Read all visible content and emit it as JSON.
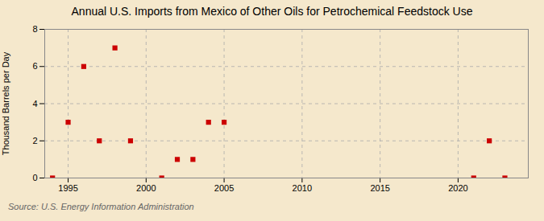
{
  "chart_data": {
    "type": "scatter",
    "title": "Annual U.S. Imports from Mexico of Other Oils for Petrochemical Feedstock Use",
    "ylabel": "Thousand Barrels per Day",
    "source": "Source: U.S. Energy Information Administration",
    "x": [
      1994,
      1995,
      1996,
      1997,
      1998,
      1999,
      2001,
      2002,
      2003,
      2004,
      2005,
      2021,
      2022,
      2023
    ],
    "values": [
      0,
      3,
      6,
      2,
      7,
      2,
      0,
      1,
      1,
      3,
      3,
      0,
      2,
      0
    ],
    "color": "#cc0000",
    "marker": "square",
    "xlim": [
      1993.5,
      2024.5
    ],
    "xticks": [
      1995,
      2000,
      2005,
      2010,
      2015,
      2020
    ],
    "ylim": [
      0,
      8
    ],
    "yticks": [
      0,
      2,
      4,
      6,
      8
    ],
    "grid": true
  }
}
